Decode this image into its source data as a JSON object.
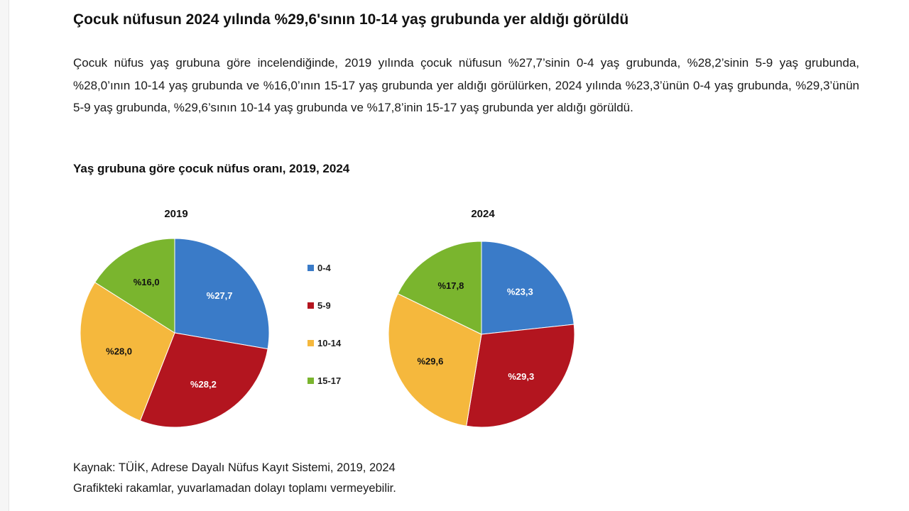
{
  "headline": "Çocuk nüfusun 2024 yılında %29,6'sının 10-14 yaş grubunda yer aldığı görüldü",
  "paragraph": "Çocuk nüfus yaş grubuna göre incelendiğinde, 2019 yılında çocuk nüfusun %27,7’sinin 0-4 yaş grubunda, %28,2’sinin 5-9 yaş grubunda, %28,0’ının 10-14 yaş grubunda ve %16,0’ının 15-17 yaş grubunda yer aldığı görülürken, 2024 yılında %23,3’ünün 0-4 yaş grubunda, %29,3’ünün 5-9 yaş grubunda, %29,6’sının 10-14 yaş grubunda ve %17,8’inin 15-17 yaş grubunda yer aldığı görüldü.",
  "footer": {
    "source": "Kaynak: TÜİK, Adrese Dayalı Nüfus Kayıt Sistemi, 2019, 2024",
    "note": "Grafikteki rakamlar, yuvarlamadan dolayı toplamı vermeyebilir."
  },
  "chart_data": {
    "type": "pie",
    "title": "Yaş grubuna göre çocuk nüfus oranı, 2019, 2024",
    "categories": [
      "0-4",
      "5-9",
      "10-14",
      "15-17"
    ],
    "colors": [
      "#3a7bc8",
      "#b3151f",
      "#f5b83d",
      "#7ab52e"
    ],
    "label_colors": [
      "#ffffff",
      "#ffffff",
      "#111111",
      "#111111"
    ],
    "legend_position": "between",
    "pies": [
      {
        "name": "2019",
        "values": [
          27.7,
          28.2,
          28.0,
          16.0
        ],
        "labels": [
          "%27,7",
          "%28,2",
          "%28,0",
          "%16,0"
        ]
      },
      {
        "name": "2024",
        "values": [
          23.3,
          29.3,
          29.6,
          17.8
        ],
        "labels": [
          "%23,3",
          "%29,3",
          "%29,6",
          "%17,8"
        ]
      }
    ]
  }
}
